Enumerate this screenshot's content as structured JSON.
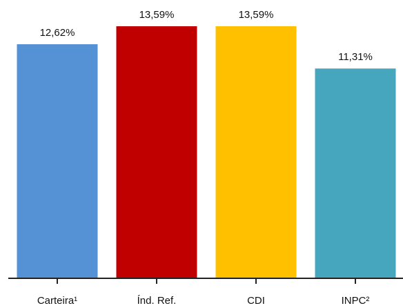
{
  "chart_data": {
    "type": "bar",
    "categories": [
      "Carteira¹",
      "Índ. Ref.",
      "CDI",
      "INPC²"
    ],
    "values": [
      12.62,
      13.59,
      13.59,
      11.31
    ],
    "value_labels": [
      "12,62%",
      "13,59%",
      "13,59%",
      "11,31%"
    ],
    "colors": [
      "#5591d5",
      "#c00000",
      "#ffc000",
      "#46a6bd"
    ],
    "title": "",
    "xlabel": "",
    "ylabel": "",
    "ylim": [
      0,
      13.59
    ],
    "grid": false,
    "legend": "none",
    "axis_color": "#222222"
  }
}
